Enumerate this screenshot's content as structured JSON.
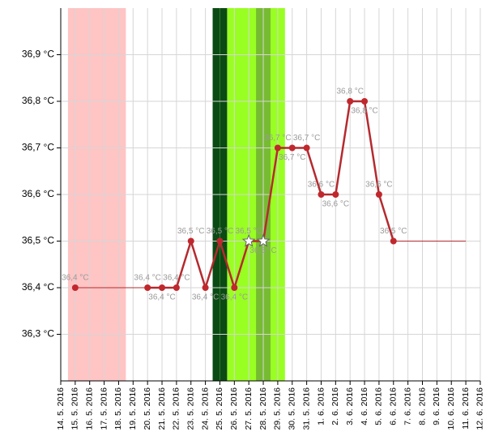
{
  "chart_data": {
    "type": "line",
    "categories": [
      "14. 5. 2016",
      "15. 5. 2016",
      "16. 5. 2016",
      "17. 5. 2016",
      "18. 5. 2016",
      "19. 5. 2016",
      "20. 5. 2016",
      "21. 5. 2016",
      "22. 5. 2016",
      "23. 5. 2016",
      "24. 5. 2016",
      "25. 5. 2016",
      "26. 5. 2016",
      "27. 5. 2016",
      "28. 5. 2016",
      "29. 5. 2016",
      "30. 5. 2016",
      "31. 5. 2016",
      "1. 6. 2016",
      "2. 6. 2016",
      "3. 6. 2016",
      "4. 6. 2016",
      "5. 6. 2016",
      "6. 6. 2016",
      "7. 6. 2016",
      "8. 6. 2016",
      "9. 6. 2016",
      "10. 6. 2016",
      "11. 6. 2016",
      "12. 6. 2016"
    ],
    "series": [
      {
        "color": "#b52a2f",
        "values": [
          null,
          36.4,
          null,
          null,
          null,
          null,
          36.4,
          36.4,
          36.4,
          36.5,
          36.4,
          36.5,
          36.4,
          36.5,
          36.5,
          36.7,
          36.7,
          36.7,
          36.6,
          36.6,
          36.8,
          36.8,
          36.6,
          36.5,
          null,
          null,
          null,
          null,
          null,
          null
        ],
        "value_labels": [
          null,
          "36,4 °C",
          null,
          null,
          null,
          null,
          "36,4 °C",
          "36,4 °C",
          "36,4 °C",
          "36,5 °C",
          "36,4 °C",
          "36,5 °C",
          "36,4 °C",
          "36,5 °C",
          "36,5 °C",
          "36,7 °C",
          "36,7 °C",
          "36,7 °C",
          "36,6 °C",
          "36,6 °C",
          "36,8 °C",
          "36,8 °C",
          "36,6 °C",
          "36,5 °C",
          null,
          null,
          null,
          null,
          null,
          null
        ]
      },
      {
        "color": "#b52a2f",
        "values": [
          null,
          36.4,
          36.4,
          36.4,
          36.4,
          36.4,
          36.4,
          null,
          null,
          null,
          null,
          null,
          null,
          null,
          null,
          null,
          null,
          null,
          null,
          null,
          null,
          null,
          null,
          36.5,
          36.5,
          36.5,
          36.5,
          36.5,
          36.5,
          null
        ]
      }
    ],
    "ylim": [
      36.2,
      37.0
    ],
    "yticks": [
      {
        "value": 36.3,
        "label": "36,3 °C"
      },
      {
        "value": 36.4,
        "label": "36,4 °C"
      },
      {
        "value": 36.5,
        "label": "36,5 °C"
      },
      {
        "value": 36.6,
        "label": "36,6 °C"
      },
      {
        "value": 36.7,
        "label": "36,7 °C"
      },
      {
        "value": 36.8,
        "label": "36,8 °C"
      },
      {
        "value": 36.9,
        "label": "36,9 °C"
      }
    ],
    "grid": true
  }
}
